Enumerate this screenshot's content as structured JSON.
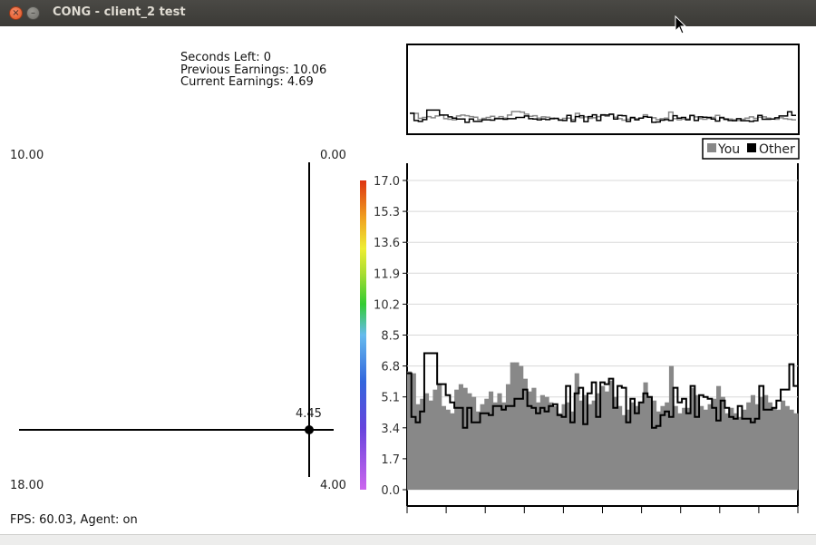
{
  "window": {
    "title": "CONG - client_2 test",
    "close_glyph": "×",
    "minimize_glyph": "–"
  },
  "stats": {
    "seconds_left": "Seconds Left: 0",
    "previous_earnings": "Previous Earnings: 10.06",
    "current_earnings": "Current Earnings: 4.69"
  },
  "strategy_plot": {
    "top_left": "10.00",
    "top_right": "0.00",
    "bottom_left": "18.00",
    "bottom_right": "4.00",
    "point_value": "4.45"
  },
  "legend": {
    "you": "You",
    "other": "Other",
    "you_color": "#888888",
    "other_color": "#000000"
  },
  "footer": {
    "status": "FPS: 60.03, Agent: on"
  },
  "chart_data": {
    "type": "area",
    "ylim": [
      0,
      17
    ],
    "yticks": [
      "0.0",
      "1.7",
      "3.4",
      "5.1",
      "6.8",
      "8.5",
      "10.2",
      "11.9",
      "13.6",
      "15.3",
      "17.0"
    ],
    "grid": true,
    "series": [
      {
        "name": "You",
        "color": "#888888",
        "values": [
          6.5,
          6.4,
          4.7,
          5.0,
          5.3,
          4.9,
          5.5,
          5.8,
          4.6,
          4.4,
          4.2,
          5.5,
          5.8,
          5.6,
          5.3,
          5.1,
          4.3,
          4.7,
          5.0,
          5.4,
          4.8,
          5.3,
          4.8,
          5.8,
          7.0,
          7.0,
          6.8,
          6.1,
          5.4,
          5.6,
          4.8,
          5.2,
          5.1,
          4.8,
          4.6,
          4.2,
          4.7,
          4.8,
          4.3,
          6.4,
          4.9,
          5.2,
          4.7,
          4.9,
          5.3,
          5.7,
          5.4,
          6.0,
          5.1,
          4.6,
          4.1,
          4.4,
          4.8,
          4.6,
          4.8,
          5.9,
          5.1,
          4.9,
          4.3,
          4.6,
          4.8,
          6.8,
          4.6,
          4.2,
          4.5,
          4.5,
          5.6,
          5.2,
          4.6,
          4.4,
          4.7,
          5.0,
          5.7,
          5.1,
          4.2,
          4.5,
          4.2,
          4.0,
          4.4,
          4.8,
          5.2,
          4.7,
          5.1,
          5.2,
          4.8,
          4.5,
          4.4,
          4.9,
          4.6,
          4.4,
          4.2
        ]
      },
      {
        "name": "Other",
        "color": "#000000",
        "values": [
          6.4,
          4.0,
          3.7,
          4.3,
          7.5,
          7.5,
          7.5,
          5.8,
          5.8,
          5.2,
          4.8,
          4.5,
          4.5,
          3.4,
          4.5,
          3.7,
          3.7,
          4.2,
          4.2,
          4.1,
          4.6,
          4.6,
          4.4,
          4.6,
          4.6,
          5.0,
          5.0,
          5.5,
          4.6,
          4.5,
          4.2,
          4.5,
          4.3,
          4.6,
          4.7,
          4.1,
          4.0,
          5.7,
          3.7,
          5.3,
          5.6,
          3.6,
          5.3,
          5.9,
          4.0,
          5.9,
          5.8,
          6.1,
          4.5,
          5.7,
          5.6,
          3.7,
          5.0,
          4.2,
          4.8,
          5.3,
          5.1,
          3.4,
          3.5,
          4.1,
          4.3,
          4.0,
          5.6,
          4.8,
          5.0,
          4.2,
          5.7,
          4.0,
          5.2,
          5.1,
          5.0,
          4.5,
          3.8,
          4.9,
          4.5,
          4.0,
          3.9,
          4.6,
          3.9,
          3.9,
          3.7,
          3.9,
          5.7,
          4.4,
          4.4,
          4.5,
          4.9,
          5.5,
          5.5,
          6.9,
          5.7
        ]
      }
    ]
  }
}
